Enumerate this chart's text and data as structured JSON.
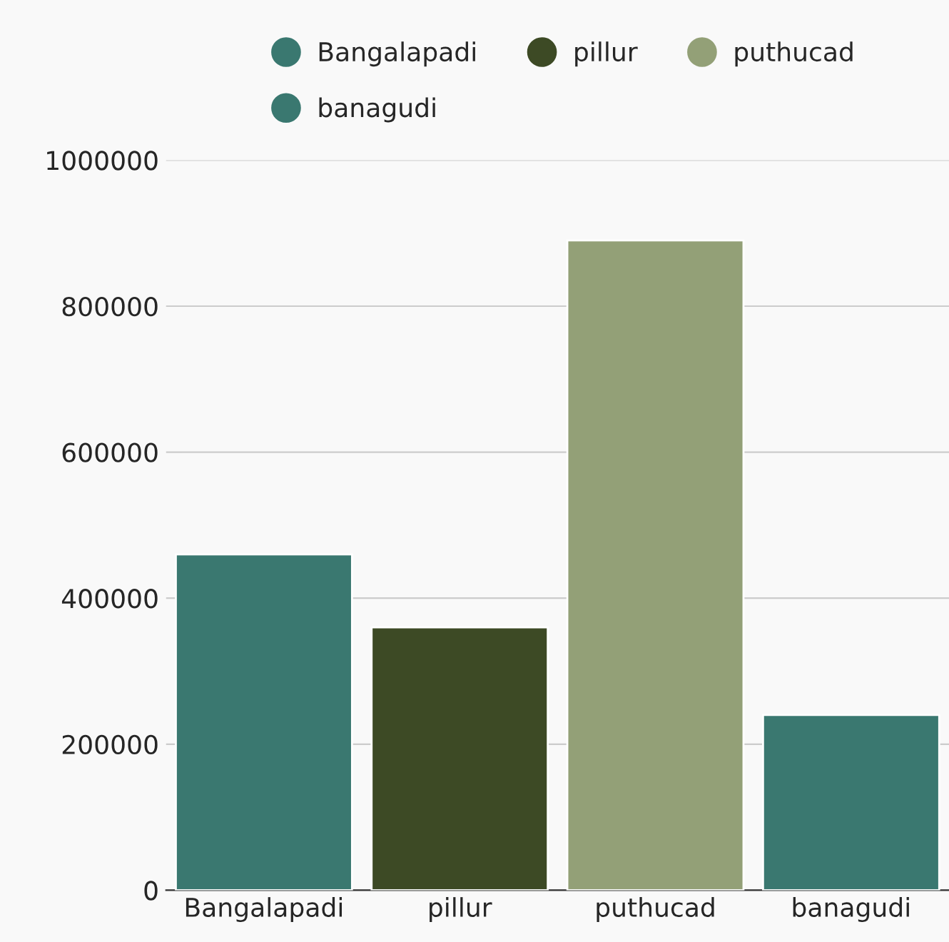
{
  "chart_data": {
    "type": "bar",
    "categories": [
      "Bangalapadi",
      "pillur",
      "puthucad",
      "banagudi"
    ],
    "series": [
      {
        "name": "Bangalapadi",
        "color": "#3a7870",
        "values": [
          460000,
          null,
          null,
          null
        ]
      },
      {
        "name": "pillur",
        "color": "#3d4a25",
        "values": [
          null,
          360000,
          null,
          null
        ]
      },
      {
        "name": "puthucad",
        "color": "#93a077",
        "values": [
          null,
          null,
          890000,
          null
        ]
      },
      {
        "name": "banagudi",
        "color": "#3a7870",
        "values": [
          null,
          null,
          null,
          240000
        ]
      }
    ],
    "ylim": [
      0,
      1000000
    ],
    "yticks": [
      0,
      200000,
      400000,
      600000,
      800000,
      1000000
    ],
    "grid": "y",
    "legend": "top"
  }
}
